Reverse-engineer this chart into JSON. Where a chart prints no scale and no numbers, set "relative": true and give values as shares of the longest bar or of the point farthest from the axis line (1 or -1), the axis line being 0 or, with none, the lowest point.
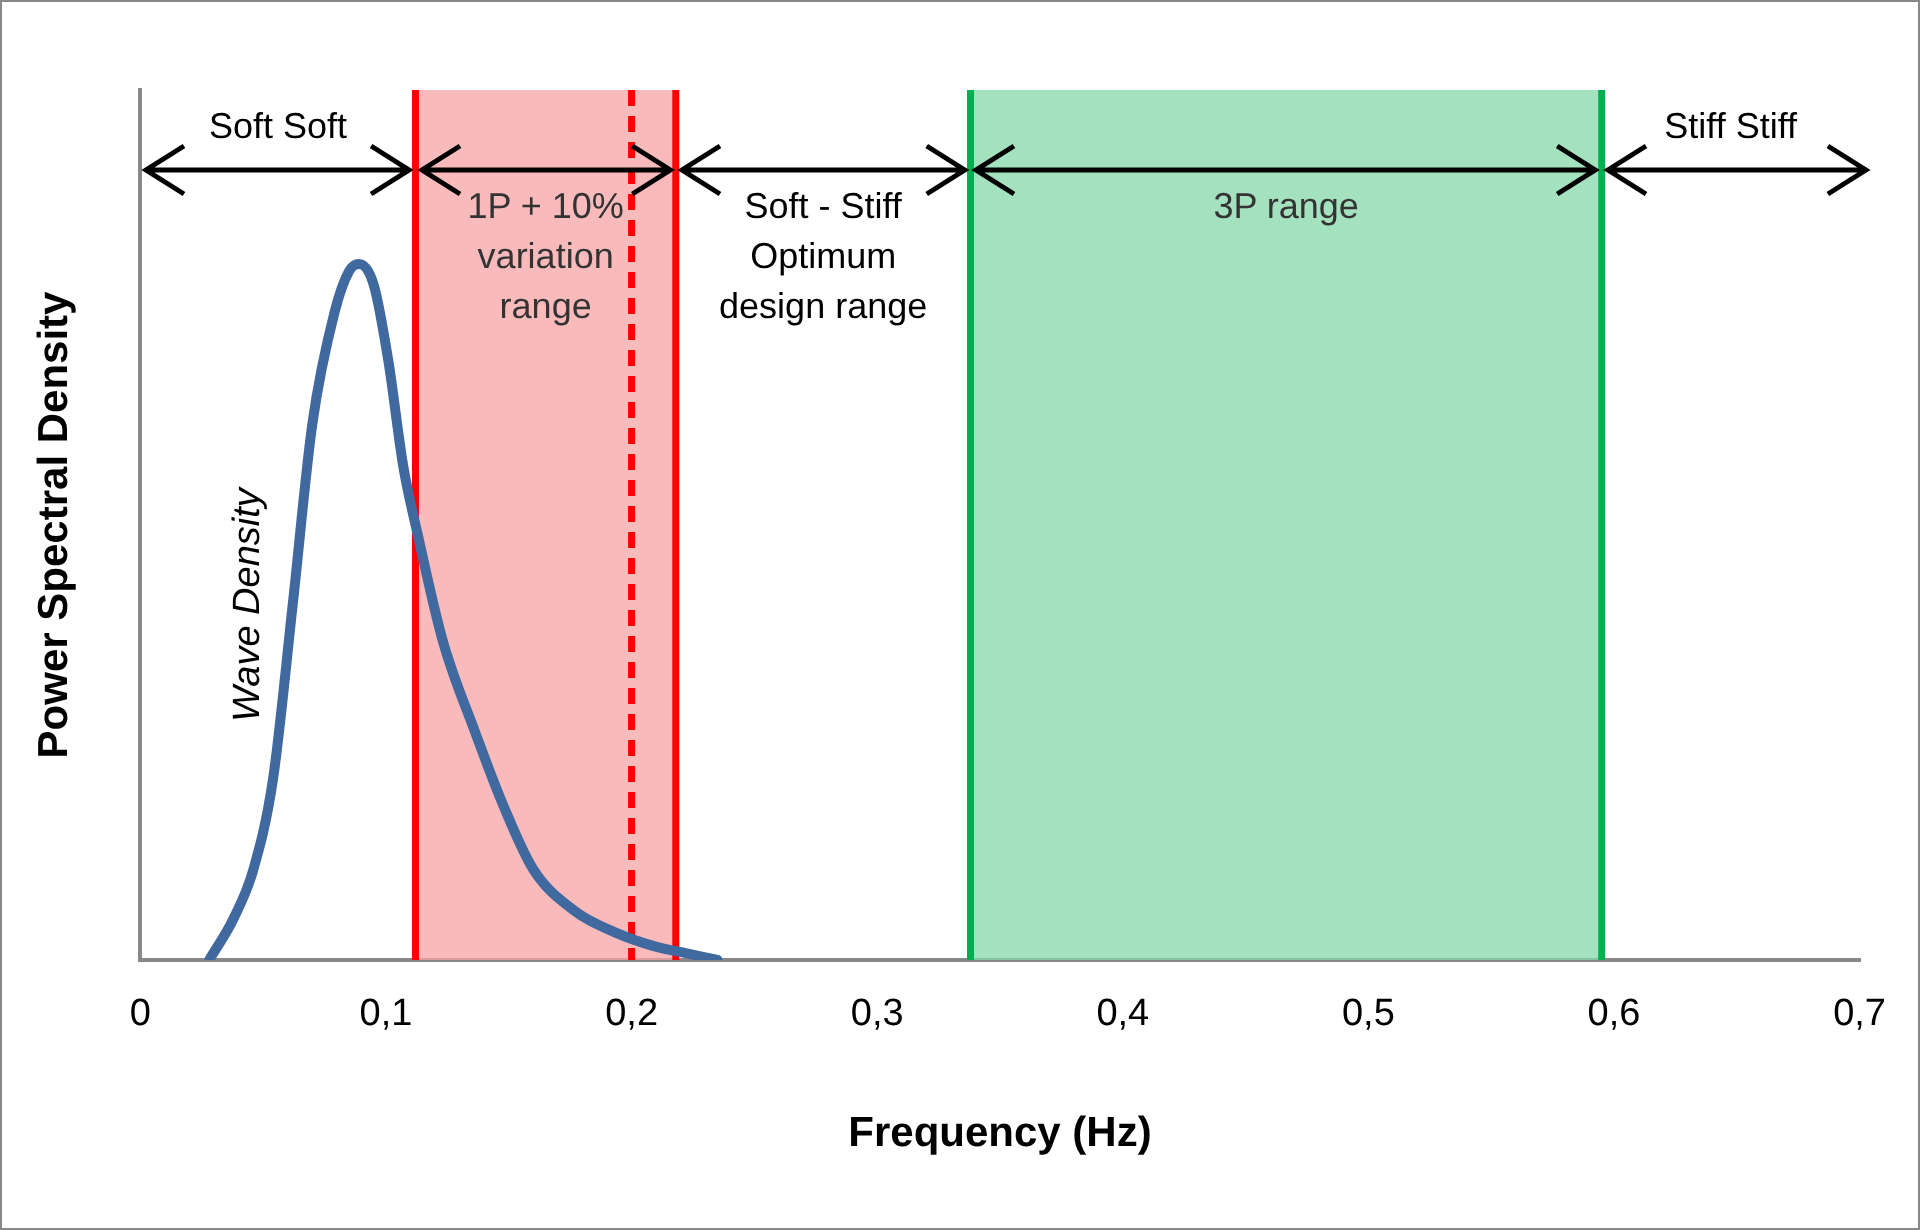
{
  "chart_data": {
    "type": "line",
    "xlabel": "Frequency (Hz)",
    "ylabel": "Power Spectral Density",
    "relative": true,
    "xlim": [
      0,
      0.7
    ],
    "xticks": [
      0,
      {
        "value": 0.1,
        "label": "0,1"
      },
      {
        "value": 0.2,
        "label": "0,2"
      },
      {
        "value": 0.3,
        "label": "0,3"
      },
      {
        "value": 0.4,
        "label": "0,4"
      },
      {
        "value": 0.5,
        "label": "0,5"
      },
      {
        "value": 0.6,
        "label": "0,6"
      },
      {
        "value": 0.7,
        "label": "0,7"
      }
    ],
    "grid": false,
    "legend": false,
    "marker": "none",
    "line_style": "solid",
    "series": [
      {
        "name": "Wave Density",
        "color": "#4069a0",
        "x": [
          0.028,
          0.038,
          0.046,
          0.054,
          0.062,
          0.07,
          0.079,
          0.085,
          0.089,
          0.095,
          0.101,
          0.107,
          0.113,
          0.123,
          0.136,
          0.148,
          0.16,
          0.177,
          0.193,
          0.209,
          0.222,
          0.235
        ],
        "values": [
          0,
          0.06,
          0.13,
          0.26,
          0.51,
          0.77,
          0.93,
          0.99,
          1,
          0.97,
          0.86,
          0.71,
          0.61,
          0.46,
          0.33,
          0.22,
          0.13,
          0.07,
          0.04,
          0.02,
          0.01,
          0
        ]
      }
    ],
    "bands": [
      {
        "axis": "x",
        "from": 0.112,
        "to": 0.218,
        "label": "1P + 10% variation range",
        "color": "#f5a3a3"
      },
      {
        "axis": "x",
        "from": 0.338,
        "to": 0.595,
        "label": "3P range",
        "color": "#86d7a8"
      }
    ],
    "ref_lines": [
      {
        "axis": "x",
        "value": 0.112,
        "color": "#ff0000",
        "line_style": "solid"
      },
      {
        "axis": "x",
        "value": 0.2,
        "color": "#ff0000",
        "line_style": "dashed"
      },
      {
        "axis": "x",
        "value": 0.218,
        "color": "#ff0000",
        "line_style": "solid"
      },
      {
        "axis": "x",
        "value": 0.338,
        "color": "#00b050",
        "line_style": "solid"
      },
      {
        "axis": "x",
        "value": 0.595,
        "color": "#00b050",
        "line_style": "solid"
      }
    ],
    "annotations": [
      "Soft Soft",
      "Soft - Stiff Optimum design range",
      "Stiff Stiff"
    ]
  }
}
